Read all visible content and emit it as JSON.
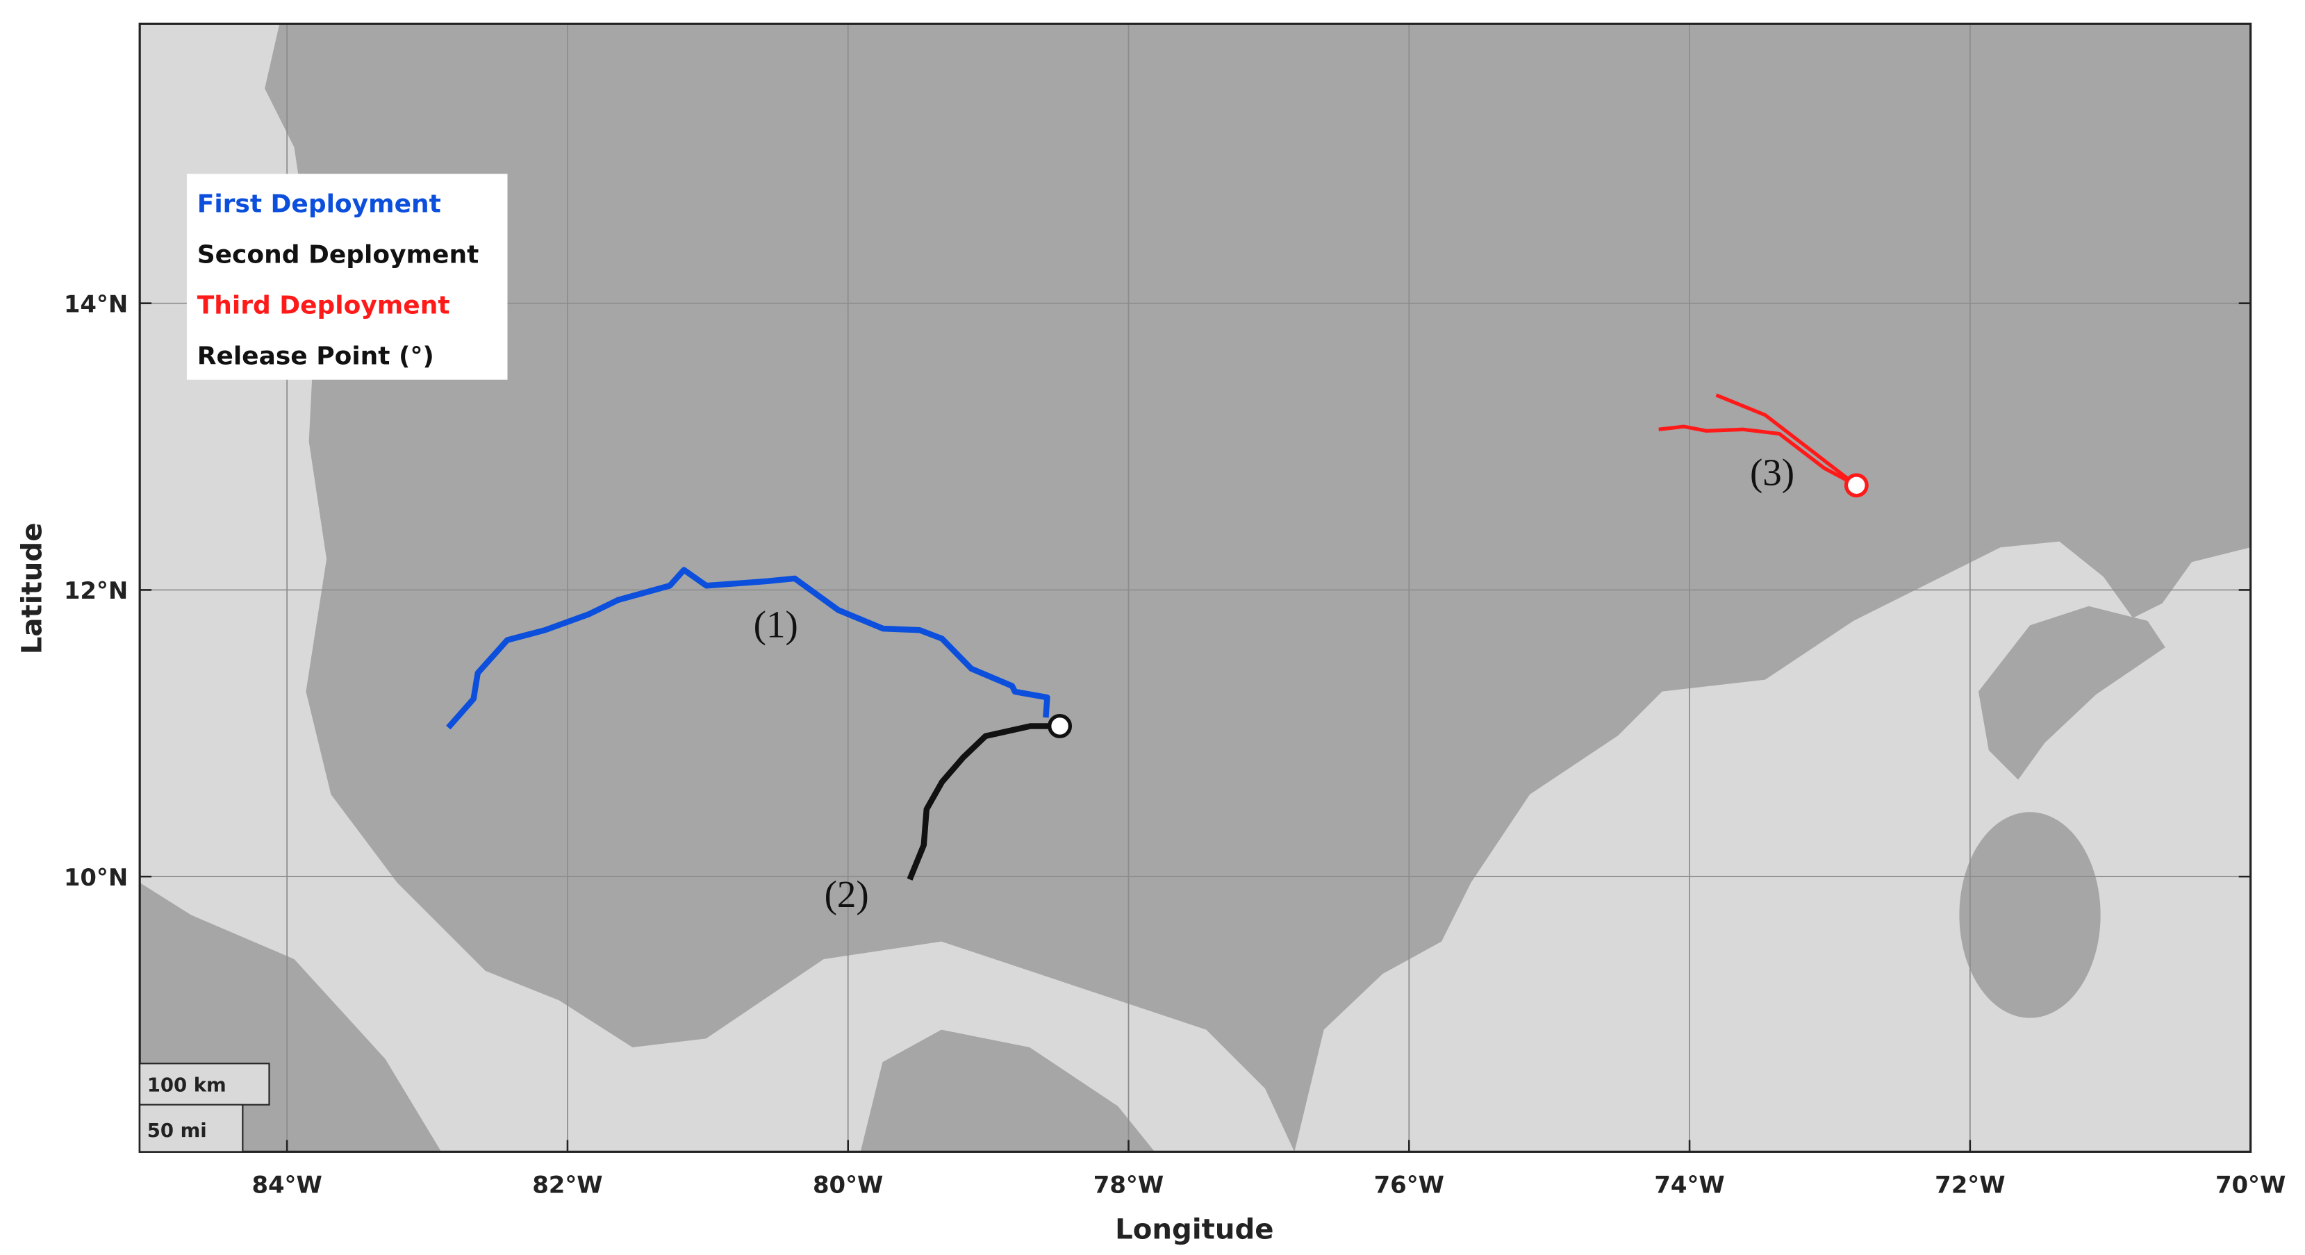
{
  "chart_data": {
    "type": "map",
    "xlabel": "Longitude",
    "ylabel": "Latitude",
    "xlim": [
      -85.05,
      -70
    ],
    "ylim": [
      8.08,
      15.95
    ],
    "xticks": [
      {
        "value": -84,
        "label": "84°W"
      },
      {
        "value": -82,
        "label": "82°W"
      },
      {
        "value": -80,
        "label": "80°W"
      },
      {
        "value": -78,
        "label": "78°W"
      },
      {
        "value": -76,
        "label": "76°W"
      },
      {
        "value": -74,
        "label": "74°W"
      },
      {
        "value": -72,
        "label": "72°W"
      },
      {
        "value": -70,
        "label": "70°W"
      }
    ],
    "yticks": [
      {
        "value": 10,
        "label": "10°N"
      },
      {
        "value": 12,
        "label": "12°N"
      },
      {
        "value": 14,
        "label": "14°N"
      }
    ],
    "grid": true,
    "series": [
      {
        "name": "First Deployment",
        "color": "#0b4fdc",
        "annotation": "(1)",
        "x": [
          -78.59,
          -78.58,
          -78.81,
          -78.83,
          -79.12,
          -79.33,
          -79.49,
          -79.75,
          -80.07,
          -80.38,
          -80.59,
          -81.01,
          -81.17,
          -81.27,
          -81.64,
          -81.85,
          -82.16,
          -82.43,
          -82.64,
          -82.67,
          -82.85
        ],
        "y": [
          11.11,
          11.25,
          11.29,
          11.33,
          11.45,
          11.66,
          11.72,
          11.73,
          11.86,
          12.08,
          12.06,
          12.03,
          12.14,
          12.03,
          11.93,
          11.83,
          11.72,
          11.65,
          11.42,
          11.24,
          11.04
        ]
      },
      {
        "name": "Second Deployment",
        "color": "#111111",
        "annotation": "(2)",
        "x": [
          -78.54,
          -78.7,
          -79.02,
          -79.18,
          -79.33,
          -79.44,
          -79.46,
          -79.56
        ],
        "y": [
          11.05,
          11.05,
          10.98,
          10.83,
          10.66,
          10.47,
          10.22,
          9.98
        ]
      },
      {
        "name": "Third Deployment",
        "color": "#ff1a1a",
        "annotation": "(3)",
        "x": [
          -73.81,
          -73.46,
          -72.81,
          -73.04,
          -73.36,
          -73.62,
          -73.88,
          -74.04,
          -74.22
        ],
        "y": [
          13.36,
          13.22,
          12.73,
          12.85,
          13.09,
          13.12,
          13.11,
          13.14,
          13.12
        ]
      }
    ],
    "release_points": {
      "name": "Release Point (°)",
      "x": [
        -78.49,
        -72.81
      ],
      "y": [
        11.05,
        12.73
      ],
      "colors": [
        "#111111",
        "#ff1a1a"
      ]
    },
    "scale_bar": [
      "100 km",
      "50 mi"
    ]
  }
}
